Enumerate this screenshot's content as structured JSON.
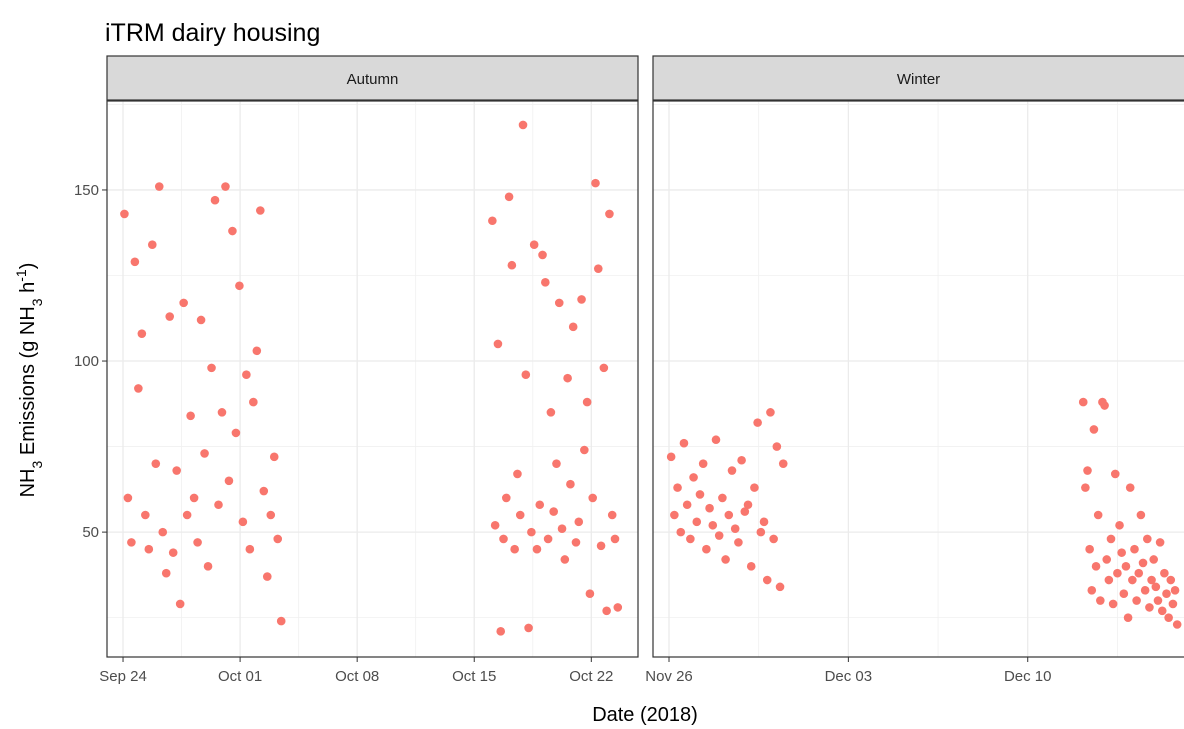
{
  "title": "iTRM dairy housing",
  "x_label": "Date (2018)",
  "y_label": [
    {
      "text": "NH"
    },
    {
      "text": "3",
      "sub": true
    },
    {
      "text": " Emissions (g NH"
    },
    {
      "text": "3",
      "sub": true
    },
    {
      "text": " h"
    },
    {
      "text": "-1",
      "sup": true
    },
    {
      "text": ")"
    }
  ],
  "chart_data": [
    {
      "type": "scatter",
      "facet": "Autumn",
      "color": "#F8766D",
      "grid": true,
      "xlim": [
        "2018-09-23T01:00",
        "2018-10-24T19:00"
      ],
      "xticks": [
        {
          "value": "2018-09-24T00:00",
          "label": "Sep 24"
        },
        {
          "value": "2018-10-01T00:00",
          "label": "Oct 01"
        },
        {
          "value": "2018-10-08T00:00",
          "label": "Oct 08"
        },
        {
          "value": "2018-10-15T00:00",
          "label": "Oct 15"
        },
        {
          "value": "2018-10-22T00:00",
          "label": "Oct 22"
        }
      ],
      "ylim": [
        13.5,
        176
      ],
      "yticks": [
        50,
        100,
        150
      ],
      "x": [
        "2018-09-24T02:00",
        "2018-09-24T07:00",
        "2018-09-24T12:00",
        "2018-09-24T17:00",
        "2018-09-24T22:00",
        "2018-09-25T03:00",
        "2018-09-25T08:00",
        "2018-09-25T13:00",
        "2018-09-25T18:00",
        "2018-09-25T23:00",
        "2018-09-26T04:00",
        "2018-09-26T09:00",
        "2018-09-26T14:00",
        "2018-09-26T19:00",
        "2018-09-27T00:00",
        "2018-09-27T05:00",
        "2018-09-27T10:00",
        "2018-09-27T15:00",
        "2018-09-27T20:00",
        "2018-09-28T01:00",
        "2018-09-28T06:00",
        "2018-09-28T11:00",
        "2018-09-28T16:00",
        "2018-09-28T21:00",
        "2018-09-29T02:00",
        "2018-09-29T07:00",
        "2018-09-29T12:00",
        "2018-09-29T17:00",
        "2018-09-29T22:00",
        "2018-09-30T03:00",
        "2018-09-30T08:00",
        "2018-09-30T13:00",
        "2018-09-30T18:00",
        "2018-09-30T23:00",
        "2018-10-01T04:00",
        "2018-10-01T09:00",
        "2018-10-01T14:00",
        "2018-10-01T19:00",
        "2018-10-02T00:00",
        "2018-10-02T05:00",
        "2018-10-02T10:00",
        "2018-10-02T15:00",
        "2018-10-02T20:00",
        "2018-10-03T01:00",
        "2018-10-03T06:00",
        "2018-10-03T11:00",
        "2018-10-16T02:00",
        "2018-10-16T06:00",
        "2018-10-16T10:00",
        "2018-10-16T14:00",
        "2018-10-16T18:00",
        "2018-10-16T22:00",
        "2018-10-17T02:00",
        "2018-10-17T06:00",
        "2018-10-17T10:00",
        "2018-10-17T14:00",
        "2018-10-17T18:00",
        "2018-10-17T22:00",
        "2018-10-18T02:00",
        "2018-10-18T06:00",
        "2018-10-18T10:00",
        "2018-10-18T14:00",
        "2018-10-18T18:00",
        "2018-10-18T22:00",
        "2018-10-19T02:00",
        "2018-10-19T06:00",
        "2018-10-19T10:00",
        "2018-10-19T14:00",
        "2018-10-19T18:00",
        "2018-10-19T22:00",
        "2018-10-20T02:00",
        "2018-10-20T06:00",
        "2018-10-20T10:00",
        "2018-10-20T14:00",
        "2018-10-20T18:00",
        "2018-10-20T22:00",
        "2018-10-21T02:00",
        "2018-10-21T06:00",
        "2018-10-21T10:00",
        "2018-10-21T14:00",
        "2018-10-21T18:00",
        "2018-10-21T22:00",
        "2018-10-22T02:00",
        "2018-10-22T06:00",
        "2018-10-22T10:00",
        "2018-10-22T14:00",
        "2018-10-22T18:00",
        "2018-10-22T22:00",
        "2018-10-23T02:00",
        "2018-10-23T06:00",
        "2018-10-23T10:00",
        "2018-10-23T14:00"
      ],
      "values": [
        143,
        60,
        47,
        129,
        92,
        108,
        55,
        45,
        134,
        70,
        151,
        50,
        38,
        113,
        44,
        68,
        29,
        117,
        55,
        84,
        60,
        47,
        112,
        73,
        40,
        98,
        147,
        58,
        85,
        151,
        65,
        138,
        79,
        122,
        53,
        96,
        45,
        88,
        103,
        144,
        62,
        37,
        55,
        72,
        48,
        24,
        141,
        52,
        105,
        21,
        48,
        60,
        148,
        128,
        45,
        67,
        55,
        169,
        96,
        22,
        50,
        134,
        45,
        58,
        131,
        123,
        48,
        85,
        56,
        70,
        117,
        51,
        42,
        95,
        64,
        110,
        47,
        53,
        118,
        74,
        88,
        32,
        60,
        152,
        127,
        46,
        98,
        27,
        143,
        55,
        48,
        28
      ]
    },
    {
      "type": "scatter",
      "facet": "Winter",
      "color": "#F8766D",
      "grid": true,
      "xlim": [
        "2018-11-25T09:00",
        "2018-12-16T08:00"
      ],
      "xticks": [
        {
          "value": "2018-11-26T00:00",
          "label": "Nov 26"
        },
        {
          "value": "2018-12-03T00:00",
          "label": "Dec 03"
        },
        {
          "value": "2018-12-10T00:00",
          "label": "Dec 10"
        }
      ],
      "ylim": [
        13.5,
        176
      ],
      "yticks": [
        50,
        100,
        150
      ],
      "x": [
        "2018-11-26T02:00",
        "2018-11-26T05:00",
        "2018-11-26T08:00",
        "2018-11-26T11:00",
        "2018-11-26T14:00",
        "2018-11-26T17:00",
        "2018-11-26T20:00",
        "2018-11-26T23:00",
        "2018-11-27T02:00",
        "2018-11-27T05:00",
        "2018-11-27T08:00",
        "2018-11-27T11:00",
        "2018-11-27T14:00",
        "2018-11-27T17:00",
        "2018-11-27T20:00",
        "2018-11-27T23:00",
        "2018-11-28T02:00",
        "2018-11-28T05:00",
        "2018-11-28T08:00",
        "2018-11-28T11:00",
        "2018-11-28T14:00",
        "2018-11-28T17:00",
        "2018-11-28T20:00",
        "2018-11-28T23:00",
        "2018-11-29T02:00",
        "2018-11-29T05:00",
        "2018-11-29T08:00",
        "2018-11-29T11:00",
        "2018-11-29T14:00",
        "2018-11-29T17:00",
        "2018-11-29T20:00",
        "2018-11-29T23:00",
        "2018-11-30T02:00",
        "2018-11-30T05:00",
        "2018-11-30T08:00",
        "2018-11-30T11:00",
        "2018-12-12T04:00",
        "2018-12-12T06:00",
        "2018-12-12T08:00",
        "2018-12-12T10:00",
        "2018-12-12T12:00",
        "2018-12-12T14:00",
        "2018-12-12T16:00",
        "2018-12-12T18:00",
        "2018-12-12T20:00",
        "2018-12-12T22:00",
        "2018-12-13T00:00",
        "2018-12-13T02:00",
        "2018-12-13T04:00",
        "2018-12-13T06:00",
        "2018-12-13T08:00",
        "2018-12-13T10:00",
        "2018-12-13T12:00",
        "2018-12-13T14:00",
        "2018-12-13T16:00",
        "2018-12-13T18:00",
        "2018-12-13T20:00",
        "2018-12-13T22:00",
        "2018-12-14T00:00",
        "2018-12-14T02:00",
        "2018-12-14T04:00",
        "2018-12-14T06:00",
        "2018-12-14T08:00",
        "2018-12-14T10:00",
        "2018-12-14T12:00",
        "2018-12-14T14:00",
        "2018-12-14T16:00",
        "2018-12-14T18:00",
        "2018-12-14T20:00",
        "2018-12-14T22:00",
        "2018-12-15T00:00",
        "2018-12-15T02:00",
        "2018-12-15T04:00",
        "2018-12-15T06:00",
        "2018-12-15T08:00",
        "2018-12-15T10:00",
        "2018-12-15T12:00",
        "2018-12-15T14:00",
        "2018-12-15T16:00",
        "2018-12-15T18:00",
        "2018-12-15T20:00"
      ],
      "values": [
        72,
        55,
        63,
        50,
        76,
        58,
        48,
        66,
        53,
        61,
        70,
        45,
        57,
        52,
        77,
        49,
        60,
        42,
        55,
        68,
        51,
        47,
        71,
        56,
        58,
        40,
        63,
        82,
        50,
        53,
        36,
        85,
        48,
        75,
        34,
        70,
        88,
        63,
        68,
        45,
        33,
        80,
        40,
        55,
        30,
        88,
        87,
        42,
        36,
        48,
        29,
        67,
        38,
        52,
        44,
        32,
        40,
        25,
        63,
        36,
        45,
        30,
        38,
        55,
        41,
        33,
        48,
        28,
        36,
        42,
        34,
        30,
        47,
        27,
        38,
        32,
        25,
        36,
        29,
        33,
        23
      ]
    }
  ]
}
